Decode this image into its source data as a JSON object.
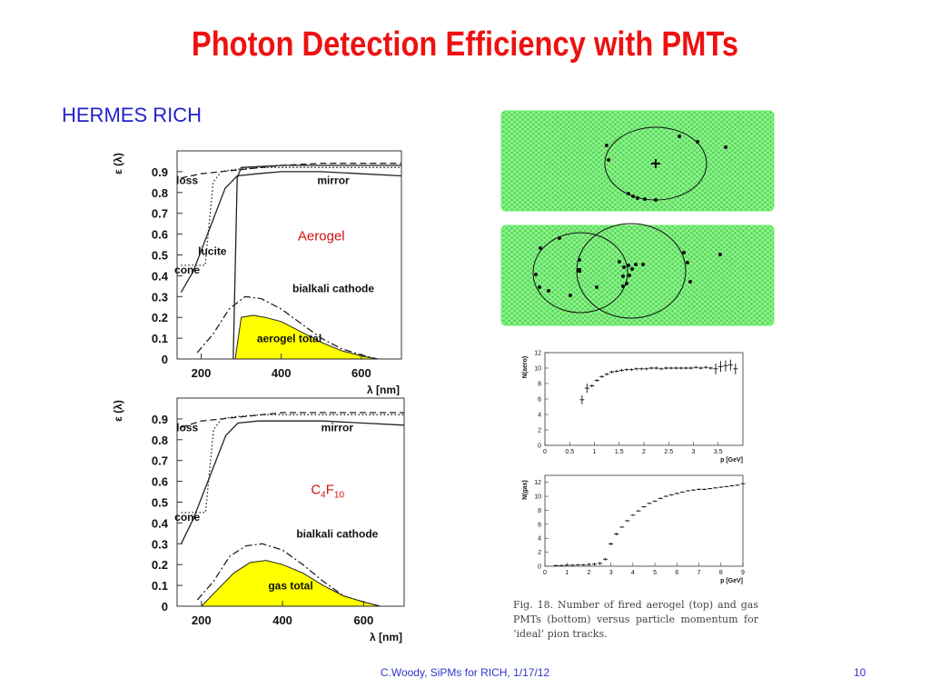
{
  "slide": {
    "title": "Photon Detection Efficiency with PMTs",
    "subtitle": "HERMES RICH",
    "footer": "C.Woody, SiPMs for RICH, 1/17/12",
    "page_number": "10",
    "caption": "Fig. 18. Number of fired aerogel (top) and gas PMTs (bottom) versus particle momentum for ‘ideal’ pion tracks.",
    "colors": {
      "title": "#ee1111",
      "text": "#2222cc",
      "fill": "#ffff00",
      "hex_grid": "#66ee66"
    }
  },
  "chart_data": [
    {
      "type": "line",
      "panel": "aerogel",
      "annotation": "Aerogel",
      "xlabel": "λ [nm]",
      "ylabel": "ε (λ)",
      "xlim": [
        140,
        700
      ],
      "ylim": [
        0,
        1.0
      ],
      "xticks": [
        "200",
        "400",
        "600"
      ],
      "yticks": [
        "0",
        "0.1",
        "0.2",
        "0.3",
        "0.4",
        "0.5",
        "0.6",
        "0.7",
        "0.8",
        "0.9"
      ],
      "labels": [
        "loss",
        "mirror",
        "lucite",
        "cone",
        "bialkali cathode",
        "aerogel total"
      ],
      "series": [
        {
          "style": "dashed",
          "x": [
            150,
            200,
            250,
            300,
            350,
            400,
            500,
            600,
            700
          ],
          "y": [
            0.87,
            0.89,
            0.9,
            0.91,
            0.92,
            0.93,
            0.94,
            0.94,
            0.94
          ]
        },
        {
          "style": "solid",
          "x": [
            150,
            180,
            220,
            260,
            290,
            340,
            400,
            500,
            600,
            700
          ],
          "y": [
            0.32,
            0.42,
            0.62,
            0.82,
            0.88,
            0.89,
            0.9,
            0.9,
            0.89,
            0.88
          ]
        },
        {
          "style": "dotted",
          "x": [
            150,
            170,
            200,
            210,
            230,
            250,
            280,
            350,
            450,
            700
          ],
          "y": [
            0.45,
            0.45,
            0.45,
            0.45,
            0.85,
            0.9,
            0.91,
            0.92,
            0.92,
            0.92
          ]
        },
        {
          "style": "solid",
          "x": [
            280,
            290,
            300,
            400,
            500,
            600,
            700
          ],
          "y": [
            0,
            0.87,
            0.92,
            0.93,
            0.93,
            0.93,
            0.93
          ]
        },
        {
          "style": "dashdot",
          "x": [
            190,
            230,
            270,
            310,
            350,
            400,
            450,
            500,
            550,
            600,
            640
          ],
          "y": [
            0.03,
            0.12,
            0.24,
            0.3,
            0.29,
            0.24,
            0.17,
            0.1,
            0.05,
            0.02,
            0.0
          ]
        },
        {
          "style": "fill",
          "x": [
            285,
            300,
            330,
            360,
            400,
            450,
            500,
            550,
            600,
            640
          ],
          "y": [
            0,
            0.2,
            0.21,
            0.2,
            0.18,
            0.13,
            0.08,
            0.04,
            0.015,
            0.0
          ]
        }
      ]
    },
    {
      "type": "line",
      "panel": "gas",
      "annotation_base": "C",
      "annotation_sub1": "4",
      "annotation_mid": "F",
      "annotation_sub2": "10",
      "xlabel": "λ [nm]",
      "ylabel": "ε (λ)",
      "xlim": [
        140,
        700
      ],
      "ylim": [
        0,
        1.0
      ],
      "xticks": [
        "200",
        "400",
        "600"
      ],
      "yticks": [
        "0",
        "0.1",
        "0.2",
        "0.3",
        "0.4",
        "0.5",
        "0.6",
        "0.7",
        "0.8",
        "0.9"
      ],
      "labels": [
        "loss",
        "mirror",
        "cone",
        "bialkali cathode",
        "gas total"
      ],
      "series": [
        {
          "style": "dashed",
          "x": [
            150,
            200,
            250,
            300,
            350,
            400,
            500,
            600,
            700
          ],
          "y": [
            0.86,
            0.89,
            0.9,
            0.91,
            0.92,
            0.93,
            0.93,
            0.93,
            0.93
          ]
        },
        {
          "style": "solid",
          "x": [
            150,
            180,
            220,
            260,
            290,
            340,
            400,
            500,
            600,
            700
          ],
          "y": [
            0.3,
            0.42,
            0.62,
            0.82,
            0.88,
            0.89,
            0.89,
            0.89,
            0.88,
            0.87
          ]
        },
        {
          "style": "dotted",
          "x": [
            150,
            170,
            200,
            210,
            230,
            250,
            280,
            350,
            450,
            700
          ],
          "y": [
            0.45,
            0.45,
            0.45,
            0.45,
            0.85,
            0.9,
            0.91,
            0.92,
            0.92,
            0.92
          ]
        },
        {
          "style": "dashdot",
          "x": [
            190,
            230,
            270,
            310,
            350,
            400,
            450,
            500,
            550,
            600,
            640
          ],
          "y": [
            0.03,
            0.12,
            0.24,
            0.29,
            0.3,
            0.27,
            0.2,
            0.12,
            0.05,
            0.02,
            0.0
          ]
        },
        {
          "style": "fill",
          "x": [
            200,
            240,
            280,
            320,
            360,
            400,
            450,
            500,
            550,
            600,
            640
          ],
          "y": [
            0,
            0.08,
            0.16,
            0.21,
            0.22,
            0.2,
            0.16,
            0.1,
            0.05,
            0.02,
            0.0
          ]
        }
      ]
    },
    {
      "type": "scatter",
      "panel": "aerogel-pmts",
      "xlabel": "p [GeV]",
      "ylabel": "N(aero)",
      "xlim": [
        0,
        4
      ],
      "ylim": [
        0,
        12
      ],
      "xticks": [
        "0",
        "0.5",
        "1",
        "1.5",
        "2",
        "2.5",
        "3",
        "3.5"
      ],
      "yticks": [
        "0",
        "2",
        "4",
        "6",
        "8",
        "10",
        "12"
      ],
      "x": [
        0.75,
        0.85,
        0.95,
        1.05,
        1.15,
        1.25,
        1.35,
        1.45,
        1.55,
        1.65,
        1.75,
        1.85,
        1.95,
        2.05,
        2.15,
        2.25,
        2.35,
        2.45,
        2.55,
        2.65,
        2.75,
        2.85,
        2.95,
        3.05,
        3.15,
        3.25,
        3.35,
        3.45,
        3.55,
        3.65,
        3.75,
        3.85
      ],
      "y": [
        5.9,
        7.4,
        7.7,
        8.4,
        8.9,
        9.2,
        9.5,
        9.6,
        9.7,
        9.8,
        9.8,
        9.9,
        9.9,
        9.9,
        10.0,
        10.0,
        9.9,
        10.0,
        10.0,
        10.0,
        10.0,
        10.0,
        10.0,
        10.1,
        10.0,
        10.1,
        10.0,
        9.9,
        10.2,
        10.3,
        10.4,
        9.9
      ]
    },
    {
      "type": "scatter",
      "panel": "gas-pmts",
      "xlabel": "p [GeV]",
      "ylabel": "N(gas)",
      "xlim": [
        0,
        9
      ],
      "ylim": [
        0,
        13
      ],
      "xticks": [
        "0",
        "1",
        "2",
        "3",
        "4",
        "5",
        "6",
        "7",
        "8",
        "9"
      ],
      "yticks": [
        "0",
        "2",
        "4",
        "6",
        "8",
        "10",
        "12"
      ],
      "x": [
        0.5,
        0.75,
        1.0,
        1.25,
        1.5,
        1.75,
        2.0,
        2.25,
        2.5,
        2.75,
        3.0,
        3.25,
        3.5,
        3.75,
        4.0,
        4.25,
        4.5,
        4.75,
        5.0,
        5.25,
        5.5,
        5.75,
        6.0,
        6.25,
        6.5,
        6.75,
        7.0,
        7.25,
        7.5,
        7.75,
        8.0,
        8.25,
        8.5,
        8.75,
        9.0
      ],
      "y": [
        0.1,
        0.1,
        0.15,
        0.15,
        0.2,
        0.2,
        0.25,
        0.3,
        0.4,
        1.0,
        3.2,
        4.6,
        5.6,
        6.5,
        7.3,
        7.9,
        8.5,
        9.0,
        9.3,
        9.7,
        10.0,
        10.2,
        10.4,
        10.6,
        10.8,
        10.9,
        11.0,
        11.0,
        11.1,
        11.2,
        11.3,
        11.4,
        11.5,
        11.6,
        11.8
      ]
    }
  ]
}
